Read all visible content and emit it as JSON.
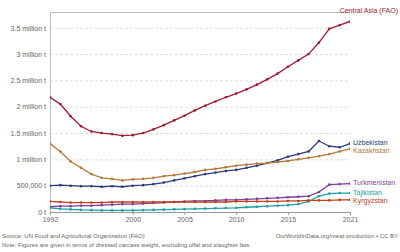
{
  "chart_data": {
    "type": "line",
    "marker": "circle",
    "grid": true,
    "x": [
      1992,
      1993,
      1994,
      1995,
      1996,
      1997,
      1998,
      1999,
      2000,
      2001,
      2002,
      2003,
      2004,
      2005,
      2006,
      2007,
      2008,
      2009,
      2010,
      2011,
      2012,
      2013,
      2014,
      2015,
      2016,
      2017,
      2018,
      2019,
      2020,
      2021
    ],
    "xlim": [
      1992,
      2021
    ],
    "xticks": [
      1992,
      2000,
      2005,
      2010,
      2015,
      2021
    ],
    "ylim": [
      0,
      3800000
    ],
    "yticks": [
      {
        "value": 0,
        "label": "0 t"
      },
      {
        "value": 500000,
        "label": "500,000 t"
      },
      {
        "value": 1000000,
        "label": "1 million t"
      },
      {
        "value": 1500000,
        "label": "1.5 million t"
      },
      {
        "value": 2000000,
        "label": "2 million t"
      },
      {
        "value": 2500000,
        "label": "2.5 million t"
      },
      {
        "value": 3000000,
        "label": "3 million t"
      },
      {
        "value": 3500000,
        "label": "3.5 million t"
      }
    ],
    "series": [
      {
        "name": "Central Asia (FAO)",
        "color": "#9b1c31",
        "values": [
          2180000,
          2050000,
          1820000,
          1630000,
          1530000,
          1500000,
          1480000,
          1450000,
          1460000,
          1500000,
          1570000,
          1650000,
          1740000,
          1830000,
          1930000,
          2020000,
          2100000,
          2180000,
          2250000,
          2330000,
          2420000,
          2520000,
          2630000,
          2760000,
          2880000,
          3000000,
          3220000,
          3480000,
          3550000,
          3620000
        ]
      },
      {
        "name": "Uzbekistan",
        "color": "#2a3a7a",
        "values": [
          500000,
          510000,
          500000,
          490000,
          490000,
          480000,
          490000,
          480000,
          500000,
          510000,
          530000,
          560000,
          600000,
          640000,
          680000,
          720000,
          750000,
          780000,
          800000,
          840000,
          880000,
          930000,
          980000,
          1050000,
          1100000,
          1150000,
          1350000,
          1250000,
          1230000,
          1300000
        ]
      },
      {
        "name": "Kazakhstan",
        "color": "#b5773a",
        "values": [
          1300000,
          1150000,
          960000,
          840000,
          720000,
          650000,
          630000,
          600000,
          620000,
          630000,
          650000,
          680000,
          700000,
          730000,
          760000,
          800000,
          820000,
          850000,
          880000,
          900000,
          920000,
          930000,
          950000,
          970000,
          1000000,
          1030000,
          1060000,
          1100000,
          1150000,
          1200000
        ]
      },
      {
        "name": "Turkmenistan",
        "color": "#7b3f9a",
        "values": [
          100000,
          110000,
          110000,
          120000,
          120000,
          130000,
          140000,
          150000,
          150000,
          160000,
          170000,
          180000,
          190000,
          200000,
          210000,
          210000,
          220000,
          230000,
          230000,
          240000,
          250000,
          260000,
          270000,
          280000,
          290000,
          300000,
          380000,
          520000,
          530000,
          540000
        ]
      },
      {
        "name": "Tajikistan",
        "color": "#1f9ea3",
        "values": [
          80000,
          60000,
          50000,
          40000,
          35000,
          30000,
          30000,
          30000,
          30000,
          35000,
          40000,
          45000,
          50000,
          55000,
          60000,
          65000,
          70000,
          75000,
          80000,
          90000,
          100000,
          110000,
          120000,
          130000,
          150000,
          200000,
          300000,
          350000,
          360000,
          360000
        ]
      },
      {
        "name": "Kyrgyzstan",
        "color": "#c2401c",
        "values": [
          200000,
          190000,
          180000,
          180000,
          180000,
          180000,
          190000,
          190000,
          190000,
          190000,
          190000,
          190000,
          190000,
          190000,
          190000,
          190000,
          190000,
          190000,
          200000,
          200000,
          200000,
          200000,
          200000,
          210000,
          210000,
          220000,
          220000,
          220000,
          230000,
          230000
        ]
      }
    ],
    "source": "Source: UN Food and Agricultural Organization (FAO)",
    "credit": "OurWorldInData.org/meat-production • CC BY",
    "note": "Note: Figures are given in terms of dressed carcass weight, excluding offal and slaughter fats."
  }
}
